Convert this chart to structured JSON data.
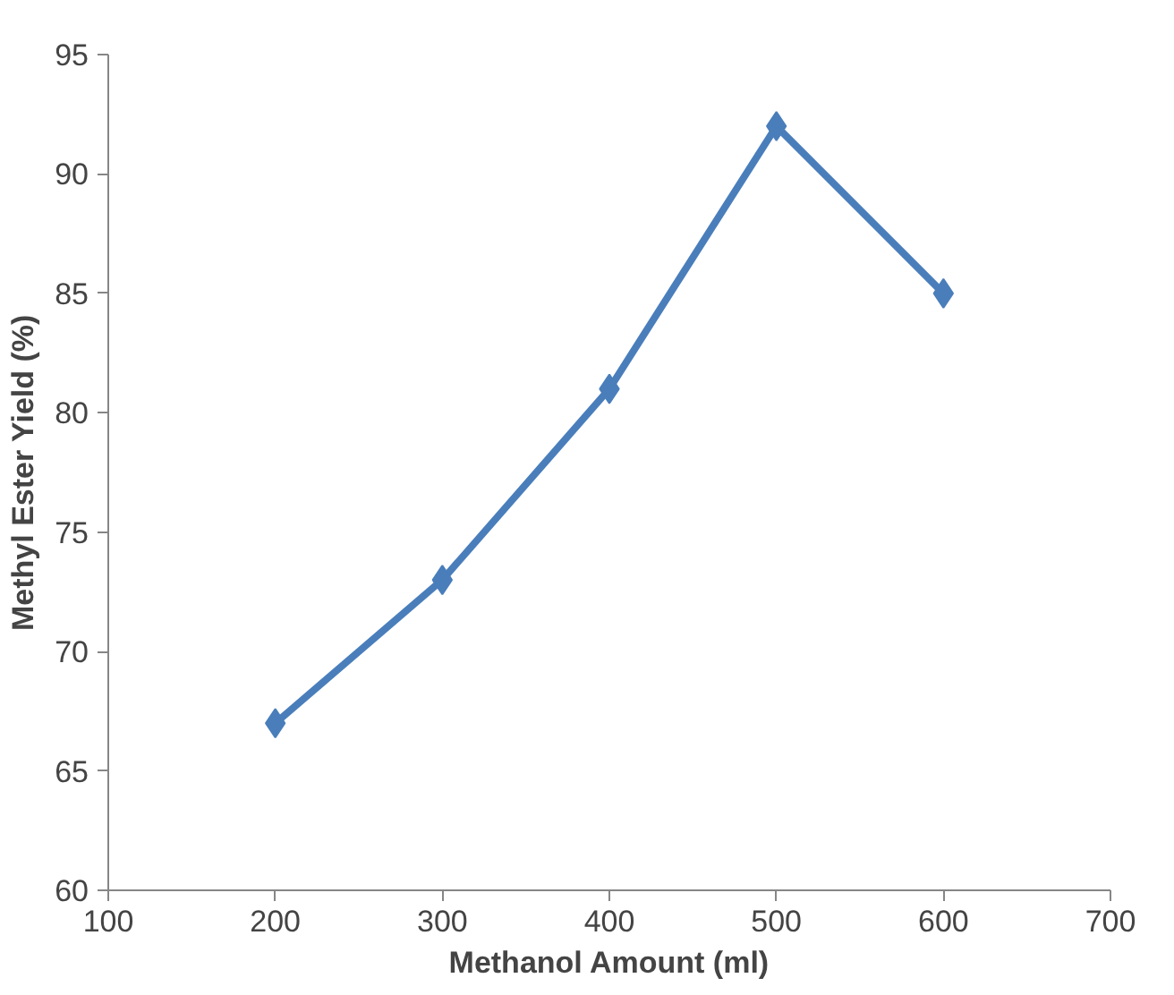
{
  "chart_data": {
    "type": "line",
    "xlabel": "Methanol Amount (ml)",
    "ylabel": "Methyl Ester Yield (%)",
    "x": [
      200,
      300,
      400,
      500,
      600
    ],
    "series": [
      {
        "color": "#4a7ebb",
        "values": [
          67,
          73,
          81,
          92,
          85
        ]
      }
    ],
    "xlim": [
      100,
      700
    ],
    "xticks": [
      100,
      200,
      300,
      400,
      500,
      600,
      700
    ],
    "ylim": [
      60,
      95
    ],
    "yticks": [
      60,
      65,
      70,
      75,
      80,
      85,
      90,
      95
    ],
    "grid": false,
    "marker": "diamond",
    "line_style": "solid"
  }
}
